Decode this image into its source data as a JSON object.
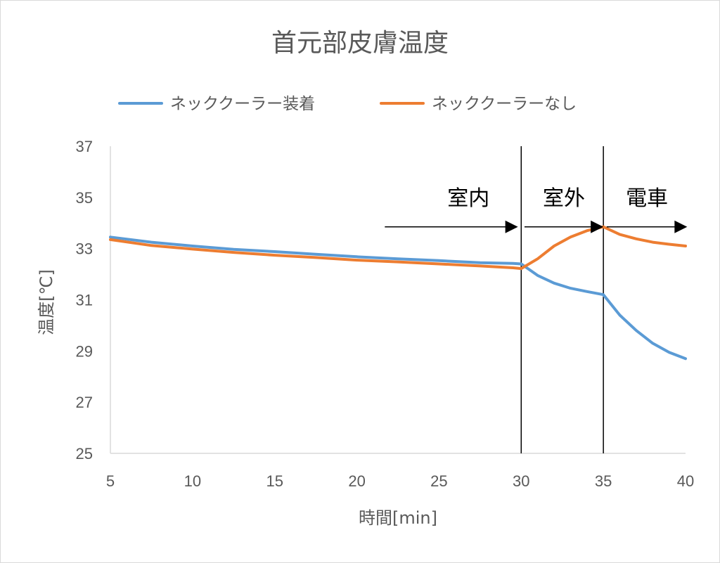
{
  "chart_data": {
    "type": "line",
    "title": "首元部皮膚温度",
    "xlabel": "時間[min]",
    "ylabel": "温度[℃]",
    "xlim": [
      5,
      40
    ],
    "ylim": [
      25,
      37
    ],
    "x_ticks": [
      "5",
      "10",
      "15",
      "20",
      "25",
      "30",
      "35",
      "40"
    ],
    "y_ticks": [
      "25",
      "27",
      "29",
      "31",
      "33",
      "35",
      "37"
    ],
    "legend_position": "top",
    "grid": false,
    "series": [
      {
        "name": "ネッククーラー装着",
        "color": "#5b9bd5",
        "x": [
          5,
          7.5,
          10,
          12.5,
          15,
          17.5,
          20,
          22.5,
          25,
          27.5,
          29.5,
          30,
          31,
          32,
          33,
          34,
          35,
          36,
          37,
          38,
          39,
          40
        ],
        "y": [
          33.45,
          33.25,
          33.1,
          32.97,
          32.88,
          32.78,
          32.68,
          32.6,
          32.53,
          32.45,
          32.42,
          32.4,
          31.95,
          31.65,
          31.45,
          31.32,
          31.2,
          30.4,
          29.8,
          29.3,
          28.95,
          28.7
        ]
      },
      {
        "name": "ネッククーラーなし",
        "color": "#ed7d31",
        "x": [
          5,
          7.5,
          10,
          12.5,
          15,
          17.5,
          20,
          22.5,
          25,
          27.5,
          29.5,
          30,
          31,
          32,
          33,
          34,
          35,
          36,
          37,
          38,
          39,
          40
        ],
        "y": [
          33.35,
          33.12,
          32.98,
          32.85,
          32.74,
          32.65,
          32.55,
          32.48,
          32.4,
          32.32,
          32.25,
          32.22,
          32.6,
          33.1,
          33.45,
          33.7,
          33.85,
          33.55,
          33.38,
          33.25,
          33.17,
          33.1
        ]
      }
    ],
    "vertical_lines": [
      30,
      35
    ],
    "annotations": [
      {
        "label": "室内",
        "arrow_from": 21.7,
        "arrow_to": 29.8,
        "y": 33.85
      },
      {
        "label": "室外",
        "arrow_from": 30.2,
        "arrow_to": 35.0,
        "y": 33.85
      },
      {
        "label": "電車",
        "arrow_from": 35.2,
        "arrow_to": 40.1,
        "y": 33.85
      }
    ]
  }
}
